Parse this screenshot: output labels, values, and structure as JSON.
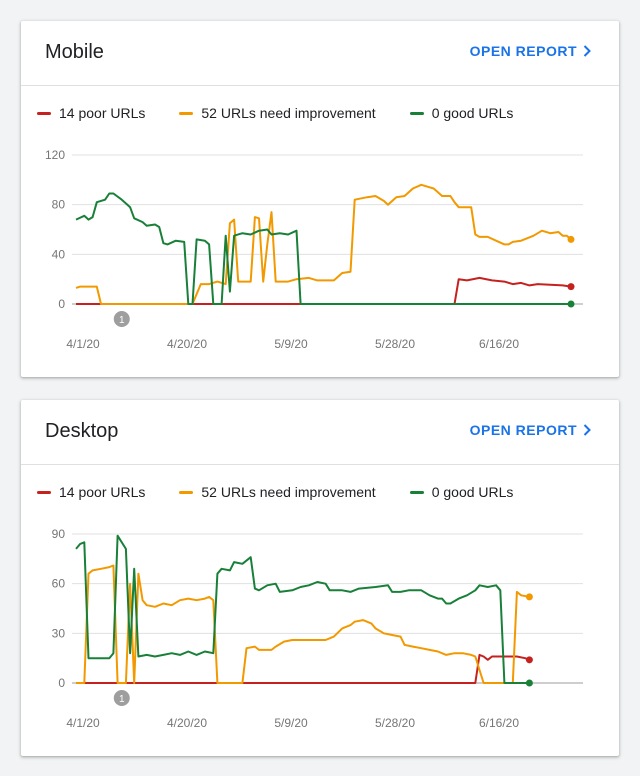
{
  "colors": {
    "poor": "#c5221f",
    "needs": "#f29900",
    "good": "#188038",
    "grid": "#e0e0e0",
    "axis": "#757575",
    "accent": "#1a73e8"
  },
  "cards": [
    {
      "title": "Mobile",
      "open_report": "OPEN REPORT",
      "legend": {
        "poor": "14 poor URLs",
        "needs": "52 URLs need improvement",
        "good": "0 good URLs"
      }
    },
    {
      "title": "Desktop",
      "open_report": "OPEN REPORT",
      "legend": {
        "poor": "14 poor URLs",
        "needs": "52 URLs need improvement",
        "good": "0 good URLs"
      }
    }
  ],
  "chart_data": [
    {
      "type": "line",
      "title": "Mobile",
      "x_tick_labels": [
        "4/1/20",
        "4/20/20",
        "5/9/20",
        "5/28/20",
        "6/16/20"
      ],
      "y_ticks": [
        0,
        40,
        80,
        120
      ],
      "ylim": [
        0,
        120
      ],
      "annotation": {
        "label": "1",
        "x": 11
      },
      "series": [
        {
          "name": "14 poor URLs",
          "key": "poor",
          "points": [
            [
              0,
              0
            ],
            [
              91,
              0
            ],
            [
              92,
              20
            ],
            [
              94,
              19
            ],
            [
              97,
              21
            ],
            [
              100,
              19
            ],
            [
              103,
              18
            ],
            [
              105,
              16
            ],
            [
              107,
              17
            ],
            [
              109,
              15
            ],
            [
              111,
              16
            ],
            [
              117,
              15
            ],
            [
              119,
              14
            ]
          ]
        },
        {
          "name": "52 URLs need improvement",
          "key": "needs",
          "points": [
            [
              0,
              13
            ],
            [
              1,
              14
            ],
            [
              5,
              14
            ],
            [
              6,
              0
            ],
            [
              28,
              0
            ],
            [
              30,
              16
            ],
            [
              32,
              16
            ],
            [
              34,
              18
            ],
            [
              36,
              16
            ],
            [
              37,
              65
            ],
            [
              38,
              68
            ],
            [
              39,
              18
            ],
            [
              42,
              18
            ],
            [
              43,
              70
            ],
            [
              44,
              69
            ],
            [
              45,
              18
            ],
            [
              46,
              48
            ],
            [
              47,
              74
            ],
            [
              48,
              18
            ],
            [
              51,
              18
            ],
            [
              53,
              20
            ],
            [
              56,
              21
            ],
            [
              58,
              19
            ],
            [
              62,
              19
            ],
            [
              64,
              25
            ],
            [
              66,
              26
            ],
            [
              67,
              84
            ],
            [
              70,
              86
            ],
            [
              72,
              87
            ],
            [
              74,
              83
            ],
            [
              75,
              80
            ],
            [
              77,
              86
            ],
            [
              79,
              87
            ],
            [
              81,
              93
            ],
            [
              83,
              96
            ],
            [
              85,
              94
            ],
            [
              86,
              93
            ],
            [
              88,
              87
            ],
            [
              90,
              87
            ],
            [
              91,
              82
            ],
            [
              92,
              78
            ],
            [
              95,
              78
            ],
            [
              96,
              56
            ],
            [
              97,
              54
            ],
            [
              99,
              54
            ],
            [
              101,
              51
            ],
            [
              103,
              48
            ],
            [
              104,
              48
            ],
            [
              105,
              50
            ],
            [
              107,
              51
            ],
            [
              110,
              55
            ],
            [
              112,
              59
            ],
            [
              114,
              57
            ],
            [
              116,
              58
            ],
            [
              117,
              55
            ],
            [
              118,
              55
            ],
            [
              119,
              52
            ]
          ]
        },
        {
          "name": "0 good URLs",
          "key": "good",
          "points": [
            [
              0,
              68
            ],
            [
              2,
              71
            ],
            [
              3,
              68
            ],
            [
              4,
              70
            ],
            [
              5,
              82
            ],
            [
              7,
              84
            ],
            [
              8,
              89
            ],
            [
              9,
              89
            ],
            [
              11,
              84
            ],
            [
              13,
              78
            ],
            [
              14,
              69
            ],
            [
              16,
              66
            ],
            [
              17,
              63
            ],
            [
              19,
              64
            ],
            [
              20,
              62
            ],
            [
              21,
              49
            ],
            [
              22,
              48
            ],
            [
              24,
              51
            ],
            [
              26,
              50
            ],
            [
              27,
              0
            ],
            [
              28,
              0
            ],
            [
              29,
              52
            ],
            [
              31,
              51
            ],
            [
              32,
              48
            ],
            [
              33,
              0
            ],
            [
              35,
              0
            ],
            [
              36,
              55
            ],
            [
              37,
              10
            ],
            [
              38,
              55
            ],
            [
              40,
              57
            ],
            [
              42,
              56
            ],
            [
              44,
              59
            ],
            [
              46,
              60
            ],
            [
              47,
              56
            ],
            [
              49,
              57
            ],
            [
              51,
              56
            ],
            [
              53,
              59
            ],
            [
              54,
              0
            ],
            [
              119,
              0
            ]
          ]
        }
      ]
    },
    {
      "type": "line",
      "title": "Desktop",
      "x_tick_labels": [
        "4/1/20",
        "4/20/20",
        "5/9/20",
        "5/28/20",
        "6/16/20"
      ],
      "y_ticks": [
        0,
        30,
        60,
        90
      ],
      "ylim": [
        0,
        90
      ],
      "annotation": {
        "label": "1",
        "x": 11
      },
      "series": [
        {
          "name": "14 poor URLs",
          "key": "poor",
          "points": [
            [
              0,
              0
            ],
            [
              96,
              0
            ],
            [
              97,
              17
            ],
            [
              98,
              16
            ],
            [
              99,
              14
            ],
            [
              100,
              16
            ],
            [
              104,
              16
            ],
            [
              106,
              16
            ],
            [
              108,
              15
            ],
            [
              109,
              14
            ]
          ]
        },
        {
          "name": "52 URLs need improvement",
          "key": "needs",
          "points": [
            [
              0,
              0
            ],
            [
              2,
              0
            ],
            [
              3,
              66
            ],
            [
              4,
              68
            ],
            [
              6,
              69
            ],
            [
              8,
              70
            ],
            [
              9,
              71
            ],
            [
              10,
              0
            ],
            [
              12,
              0
            ],
            [
              13,
              60
            ],
            [
              14,
              0
            ],
            [
              15,
              66
            ],
            [
              16,
              50
            ],
            [
              17,
              47
            ],
            [
              19,
              46
            ],
            [
              21,
              48
            ],
            [
              23,
              47
            ],
            [
              25,
              50
            ],
            [
              27,
              51
            ],
            [
              29,
              50
            ],
            [
              31,
              51
            ],
            [
              32,
              52
            ],
            [
              33,
              50
            ],
            [
              34,
              0
            ],
            [
              40,
              0
            ],
            [
              41,
              21
            ],
            [
              43,
              22
            ],
            [
              44,
              20
            ],
            [
              47,
              20
            ],
            [
              48,
              22
            ],
            [
              50,
              25
            ],
            [
              52,
              26
            ],
            [
              60,
              26
            ],
            [
              62,
              28
            ],
            [
              64,
              33
            ],
            [
              66,
              35
            ],
            [
              67,
              37
            ],
            [
              69,
              38
            ],
            [
              71,
              36
            ],
            [
              72,
              33
            ],
            [
              74,
              30
            ],
            [
              76,
              29
            ],
            [
              78,
              28
            ],
            [
              79,
              23
            ],
            [
              81,
              22
            ],
            [
              83,
              21
            ],
            [
              85,
              20
            ],
            [
              87,
              19
            ],
            [
              89,
              17
            ],
            [
              91,
              18
            ],
            [
              93,
              18
            ],
            [
              95,
              17
            ],
            [
              96,
              16
            ],
            [
              98,
              0
            ],
            [
              105,
              0
            ],
            [
              106,
              55
            ],
            [
              107,
              53
            ],
            [
              109,
              52
            ]
          ]
        },
        {
          "name": "0 good URLs",
          "key": "good",
          "points": [
            [
              0,
              81
            ],
            [
              1,
              84
            ],
            [
              2,
              85
            ],
            [
              3,
              15
            ],
            [
              8,
              15
            ],
            [
              9,
              18
            ],
            [
              10,
              89
            ],
            [
              12,
              81
            ],
            [
              13,
              18
            ],
            [
              14,
              69
            ],
            [
              15,
              16
            ],
            [
              17,
              17
            ],
            [
              19,
              16
            ],
            [
              21,
              17
            ],
            [
              23,
              18
            ],
            [
              25,
              17
            ],
            [
              27,
              19
            ],
            [
              29,
              17
            ],
            [
              31,
              19
            ],
            [
              33,
              18
            ],
            [
              34,
              66
            ],
            [
              35,
              69
            ],
            [
              37,
              68
            ],
            [
              38,
              73
            ],
            [
              40,
              72
            ],
            [
              42,
              76
            ],
            [
              43,
              57
            ],
            [
              44,
              56
            ],
            [
              46,
              59
            ],
            [
              48,
              60
            ],
            [
              49,
              55
            ],
            [
              52,
              56
            ],
            [
              54,
              58
            ],
            [
              56,
              59
            ],
            [
              58,
              61
            ],
            [
              60,
              60
            ],
            [
              61,
              56
            ],
            [
              64,
              56
            ],
            [
              66,
              55
            ],
            [
              68,
              57
            ],
            [
              72,
              58
            ],
            [
              75,
              59
            ],
            [
              76,
              55
            ],
            [
              78,
              55
            ],
            [
              80,
              56
            ],
            [
              83,
              56
            ],
            [
              85,
              53
            ],
            [
              87,
              51
            ],
            [
              88,
              51
            ],
            [
              89,
              48
            ],
            [
              90,
              48
            ],
            [
              92,
              51
            ],
            [
              94,
              53
            ],
            [
              96,
              56
            ],
            [
              97,
              59
            ],
            [
              99,
              58
            ],
            [
              101,
              59
            ],
            [
              102,
              56
            ],
            [
              103,
              0
            ],
            [
              109,
              0
            ]
          ]
        }
      ]
    }
  ]
}
